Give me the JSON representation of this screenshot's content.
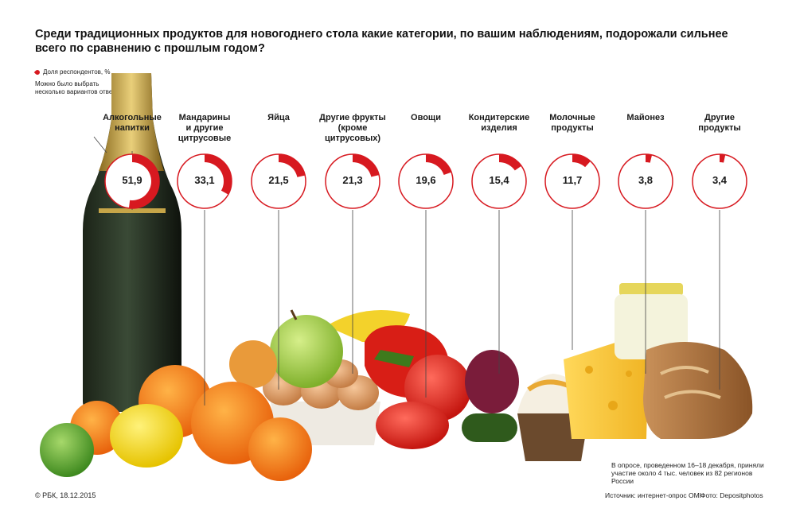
{
  "title": "Среди традиционных продуктов для новогоднего стола какие категории, по вашим наблюдениям, подорожали сильнее всего по сравнению с прошлым годом?",
  "legend": {
    "series_label": "Доля респондентов, %",
    "note": "Можно было выбрать несколько вариантов ответа"
  },
  "chart_data": {
    "type": "pie",
    "unit": "%",
    "categories": [
      "Алкогольные напитки",
      "Мандарины и другие цитрусовые",
      "Яйца",
      "Другие фрукты (кроме цитрусовых)",
      "Овощи",
      "Кондитерские изделия",
      "Молочные продукты",
      "Майонез",
      "Другие продукты"
    ],
    "values": [
      51.9,
      33.1,
      21.5,
      21.3,
      19.6,
      15.4,
      11.7,
      3.8,
      3.4
    ],
    "value_labels": [
      "51,9",
      "33,1",
      "21,5",
      "21,3",
      "19,6",
      "15,4",
      "11,7",
      "3,8",
      "3,4"
    ],
    "series": [
      {
        "name": "Доля респондентов, %"
      }
    ],
    "colors": {
      "accent": "#d71920",
      "ring": "#d71920",
      "rest": "#ffffff"
    }
  },
  "labels": {
    "l0": [
      "Алкогольные",
      "напитки"
    ],
    "l1": [
      "Мандарины",
      "и другие",
      "цитрусовые"
    ],
    "l2": [
      "Яйца"
    ],
    "l3": [
      "Другие фрукты",
      "(кроме",
      "цитрусовых)"
    ],
    "l4": [
      "Овощи"
    ],
    "l5": [
      "Кондитерские",
      "изделия"
    ],
    "l6": [
      "Молочные",
      "продукты"
    ],
    "l7": [
      "Майонез"
    ],
    "l8": [
      "Другие",
      "продукты"
    ]
  },
  "footnote": "В опросе, проведенном 16–18 декабря, приняли участие около 4 тыс. человек из 82 регионов России",
  "footer": {
    "copyright": "© РБК, 18.12.2015",
    "source": "Источник: интернет-опрос OMI",
    "photo": "Фото: Depositphotos"
  }
}
